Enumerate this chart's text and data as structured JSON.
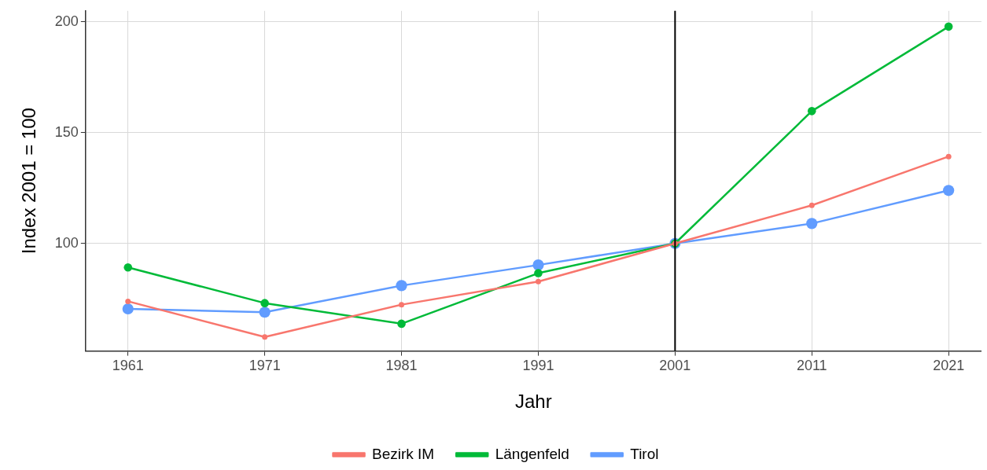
{
  "chart_data": {
    "type": "line",
    "xlabel": "Jahr",
    "ylabel": "Index 2001 = 100",
    "x": [
      1961,
      1971,
      1981,
      1991,
      2001,
      2011,
      2021
    ],
    "xlim": [
      1957.9,
      2023.4
    ],
    "xticks": [
      1961,
      1971,
      1981,
      1991,
      2001,
      2011,
      2021
    ],
    "ylim": [
      51.5,
      204.9
    ],
    "yticks": [
      100,
      150,
      200
    ],
    "series": [
      {
        "name": "Bezirk IM",
        "color": "#f8766d",
        "values": [
          73.9,
          57.8,
          72.4,
          82.8,
          100,
          117.2,
          139.2
        ]
      },
      {
        "name": "Längenfeld",
        "color": "#00ba38",
        "values": [
          89.2,
          73.1,
          63.8,
          86.6,
          100,
          159.7,
          197.8
        ]
      },
      {
        "name": "Tirol",
        "color": "#619cff",
        "values": [
          70.5,
          69.0,
          81.0,
          90.3,
          100,
          109.0,
          123.9
        ]
      }
    ],
    "ref_lines": [
      {
        "axis": "x",
        "value": 2001,
        "color": "#000000"
      }
    ],
    "grid": true,
    "legend": "bottom",
    "marker": "circle",
    "line_style": "solid"
  }
}
